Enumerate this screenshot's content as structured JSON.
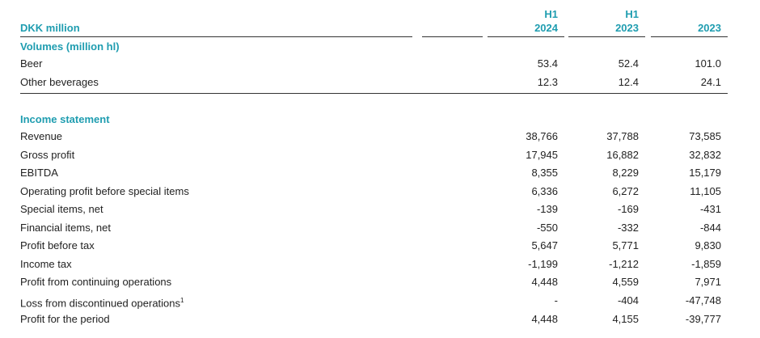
{
  "header": {
    "unit_label": "DKK million",
    "columns": [
      {
        "line1": "H1",
        "line2": "2024"
      },
      {
        "line1": "H1",
        "line2": "2023"
      },
      {
        "line1": "",
        "line2": "2023"
      }
    ]
  },
  "volumes": {
    "title": "Volumes (million hl)",
    "rows": [
      {
        "label": "Beer",
        "values": [
          "53.4",
          "52.4",
          "101.0"
        ]
      },
      {
        "label": "Other beverages",
        "values": [
          "12.3",
          "12.4",
          "24.1"
        ]
      }
    ]
  },
  "income": {
    "title": "Income statement",
    "rows": [
      {
        "label": "Revenue",
        "values": [
          "38,766",
          "37,788",
          "73,585"
        ]
      },
      {
        "label": "Gross profit",
        "values": [
          "17,945",
          "16,882",
          "32,832"
        ]
      },
      {
        "label": "EBITDA",
        "values": [
          "8,355",
          "8,229",
          "15,179"
        ]
      },
      {
        "label": "Operating profit before special items",
        "values": [
          "6,336",
          "6,272",
          "11,105"
        ]
      },
      {
        "label": "Special items, net",
        "values": [
          "-139",
          "-169",
          "-431"
        ]
      },
      {
        "label": "Financial items, net",
        "values": [
          "-550",
          "-332",
          "-844"
        ]
      },
      {
        "label": "Profit before tax",
        "values": [
          "5,647",
          "5,771",
          "9,830"
        ]
      },
      {
        "label": "Income tax",
        "values": [
          "-1,199",
          "-1,212",
          "-1,859"
        ]
      },
      {
        "label": "Profit from continuing operations",
        "values": [
          "4,448",
          "4,559",
          "7,971"
        ]
      },
      {
        "label": "Loss from discontinued operations",
        "footnote": "1",
        "values": [
          "-",
          "-404",
          "-47,748"
        ]
      },
      {
        "label": "Profit for the period",
        "values": [
          "4,448",
          "4,155",
          "-39,777"
        ]
      }
    ]
  }
}
